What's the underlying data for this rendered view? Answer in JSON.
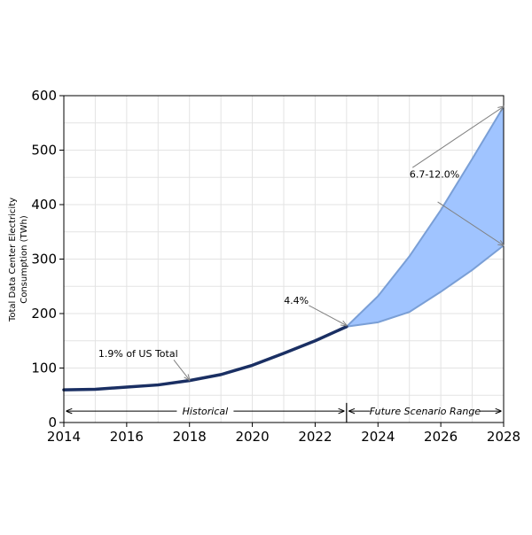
{
  "chart_data": {
    "type": "line",
    "ylabel_lines": [
      "Total Data Center Electricity",
      "Consumption (TWh)"
    ],
    "xlim": [
      2014,
      2028
    ],
    "ylim": [
      0,
      600
    ],
    "x_ticks": [
      2014,
      2016,
      2018,
      2020,
      2022,
      2024,
      2026,
      2028
    ],
    "y_ticks": [
      0,
      100,
      200,
      300,
      400,
      500,
      600
    ],
    "grid": true,
    "historical": {
      "x": [
        2014,
        2015,
        2016,
        2017,
        2018,
        2019,
        2020,
        2021,
        2022,
        2023
      ],
      "y": [
        60,
        61,
        65,
        69,
        77,
        88,
        105,
        127,
        150,
        176
      ]
    },
    "future_range": {
      "x": [
        2023,
        2024,
        2025,
        2026,
        2027,
        2028
      ],
      "upper": [
        176,
        232,
        305,
        390,
        484,
        580
      ],
      "lower": [
        176,
        184,
        203,
        240,
        280,
        325
      ]
    },
    "annotations": {
      "us_total": "1.9% of US Total",
      "point_2023": "4.4%",
      "range_2028": "6.7-12.0%"
    },
    "period_labels": {
      "historical": "Historical",
      "future": "Future Scenario Range"
    },
    "colors": {
      "historical_line": "#1a2f63",
      "range_fill": "#a0c4ff",
      "range_edge": "#7a9fd6",
      "grid": "#e3e3e3",
      "arrow": "#808080"
    }
  }
}
